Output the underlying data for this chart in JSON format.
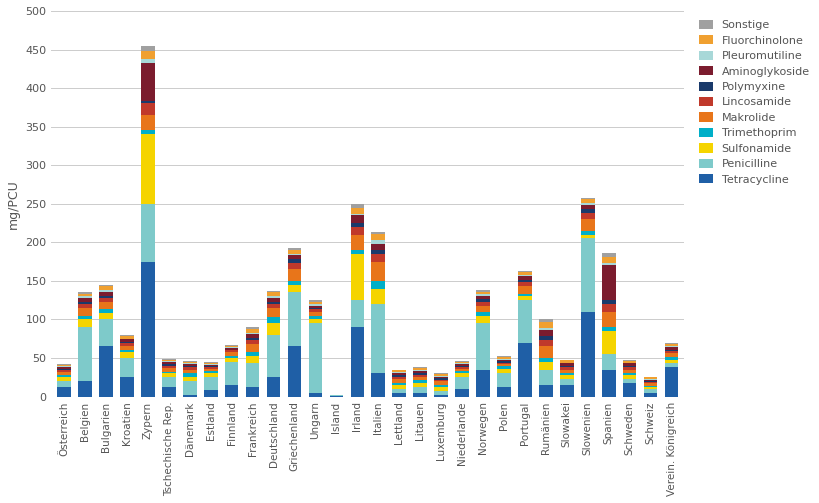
{
  "categories": [
    "Österreich",
    "Belgien",
    "Bulgarien",
    "Kroatien",
    "Zypern",
    "Tschechische Rep.",
    "Dänemark",
    "Estland",
    "Finnland",
    "Frankreich",
    "Deutschland",
    "Griechenland",
    "Ungarn",
    "Island",
    "Irland",
    "Italien",
    "Lettland",
    "Litauen",
    "Luxemburg",
    "Niederlande",
    "Norwegen",
    "Polen",
    "Portugal",
    "Rumänien",
    "Slowakei",
    "Slowenien",
    "Spanien",
    "Schweden",
    "Schweiz",
    "Verein. Königreich"
  ],
  "series": {
    "Tetracycline": [
      12,
      20,
      65,
      25,
      175,
      13,
      2,
      8,
      15,
      13,
      25,
      65,
      5,
      1,
      90,
      30,
      5,
      5,
      2,
      10,
      35,
      13,
      70,
      15,
      15,
      110,
      35,
      18,
      5,
      38
    ],
    "Penicilline": [
      8,
      70,
      35,
      25,
      75,
      12,
      18,
      18,
      30,
      30,
      55,
      70,
      90,
      1,
      35,
      90,
      5,
      8,
      5,
      15,
      60,
      18,
      55,
      20,
      8,
      95,
      20,
      5,
      5,
      5
    ],
    "Sulfonamide": [
      5,
      10,
      8,
      8,
      90,
      5,
      5,
      5,
      5,
      10,
      15,
      10,
      5,
      0,
      60,
      20,
      5,
      5,
      5,
      5,
      10,
      5,
      5,
      10,
      5,
      5,
      30,
      5,
      2,
      5
    ],
    "Trimethoprim": [
      3,
      5,
      5,
      3,
      5,
      2,
      5,
      2,
      3,
      5,
      8,
      5,
      5,
      0,
      5,
      10,
      3,
      3,
      3,
      3,
      5,
      3,
      3,
      5,
      2,
      5,
      5,
      2,
      2,
      3
    ],
    "Makrolide": [
      4,
      10,
      10,
      5,
      20,
      5,
      5,
      3,
      5,
      10,
      12,
      15,
      5,
      0,
      20,
      25,
      5,
      5,
      5,
      3,
      8,
      3,
      10,
      15,
      5,
      15,
      20,
      5,
      3,
      5
    ],
    "Lincosamide": [
      2,
      5,
      5,
      3,
      15,
      3,
      3,
      2,
      2,
      5,
      5,
      8,
      3,
      0,
      10,
      10,
      3,
      2,
      2,
      2,
      5,
      2,
      5,
      8,
      3,
      8,
      10,
      3,
      2,
      3
    ],
    "Polymyxine": [
      2,
      3,
      3,
      2,
      3,
      2,
      2,
      1,
      1,
      3,
      3,
      5,
      2,
      0,
      5,
      5,
      2,
      2,
      2,
      2,
      3,
      2,
      3,
      5,
      2,
      5,
      5,
      2,
      1,
      2
    ],
    "Aminoglykoside": [
      2,
      5,
      5,
      3,
      50,
      3,
      2,
      2,
      2,
      5,
      5,
      5,
      3,
      0,
      10,
      8,
      3,
      3,
      2,
      2,
      5,
      2,
      5,
      8,
      3,
      5,
      45,
      3,
      2,
      3
    ],
    "Pleuromutiline": [
      1,
      2,
      2,
      1,
      5,
      1,
      1,
      1,
      1,
      2,
      2,
      2,
      2,
      0,
      2,
      5,
      1,
      1,
      1,
      1,
      2,
      1,
      2,
      3,
      1,
      3,
      3,
      1,
      1,
      1
    ],
    "Fluorchinolone": [
      2,
      3,
      5,
      3,
      10,
      2,
      2,
      2,
      2,
      5,
      5,
      5,
      3,
      0,
      8,
      8,
      2,
      3,
      2,
      2,
      3,
      2,
      3,
      8,
      3,
      5,
      8,
      2,
      2,
      3
    ],
    "Sonstige": [
      1,
      2,
      2,
      2,
      7,
      1,
      1,
      1,
      1,
      2,
      2,
      2,
      2,
      0,
      5,
      3,
      1,
      1,
      1,
      1,
      2,
      1,
      2,
      3,
      1,
      2,
      5,
      1,
      1,
      2
    ]
  },
  "colors": {
    "Tetracycline": "#1f5fa6",
    "Penicilline": "#7ecaca",
    "Sulfonamide": "#f5d400",
    "Trimethoprim": "#00afc8",
    "Makrolide": "#e8751a",
    "Lincosamide": "#c0392b",
    "Polymyxine": "#1a3a6b",
    "Aminoglykoside": "#7b1c2e",
    "Pleuromutiline": "#a8d8d8",
    "Fluorchinolone": "#f0a030",
    "Sonstige": "#a0a0a0"
  },
  "ylabel": "mg/PCU",
  "ylim": [
    0,
    500
  ],
  "yticks": [
    0,
    50,
    100,
    150,
    200,
    250,
    300,
    350,
    400,
    450,
    500
  ],
  "background_color": "#ffffff",
  "grid_color": "#cccccc",
  "stack_order": [
    "Tetracycline",
    "Penicilline",
    "Sulfonamide",
    "Trimethoprim",
    "Makrolide",
    "Lincosamide",
    "Polymyxine",
    "Aminoglykoside",
    "Pleuromutiline",
    "Fluorchinolone",
    "Sonstige"
  ]
}
